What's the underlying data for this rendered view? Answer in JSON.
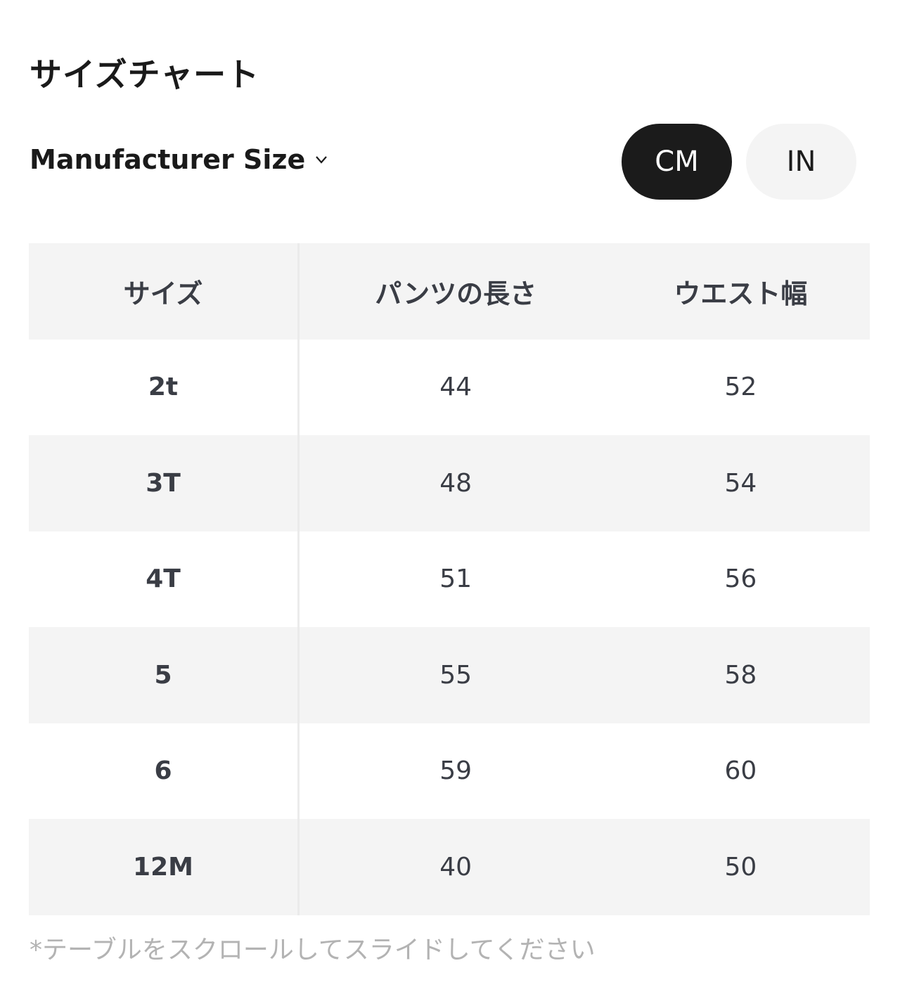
{
  "title": "サイズチャート",
  "size_system": {
    "label": "Manufacturer Size",
    "icon": "chevron-down-icon"
  },
  "units": {
    "options": [
      "CM",
      "IN"
    ],
    "selected": "CM",
    "active_color": "#1b1b1b"
  },
  "table": {
    "headers": [
      "サイズ",
      "パンツの長さ",
      "ウエスト幅"
    ],
    "rows": [
      [
        "2t",
        "44",
        "52"
      ],
      [
        "3T",
        "48",
        "54"
      ],
      [
        "4T",
        "51",
        "56"
      ],
      [
        "5",
        "55",
        "58"
      ],
      [
        "6",
        "59",
        "60"
      ],
      [
        "12M",
        "40",
        "50"
      ]
    ]
  },
  "note": "*テーブルをスクロールしてスライドしてください"
}
